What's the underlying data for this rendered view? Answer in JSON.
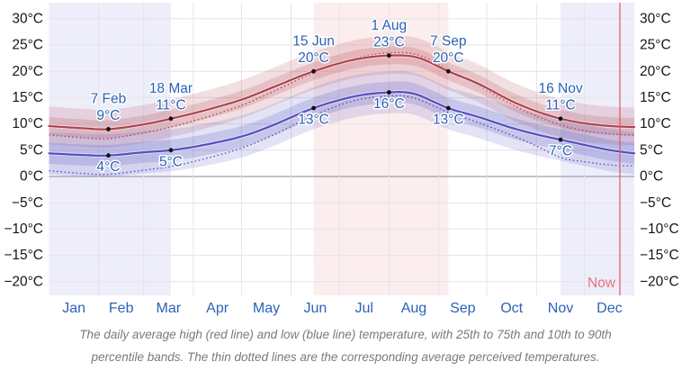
{
  "chart_data": {
    "type": "line",
    "unit": "°C",
    "x_axis": {
      "months": [
        {
          "label": "Jan",
          "start_day": 0,
          "length": 31
        },
        {
          "label": "Feb",
          "start_day": 31,
          "length": 28
        },
        {
          "label": "Mar",
          "start_day": 59,
          "length": 31
        },
        {
          "label": "Apr",
          "start_day": 90,
          "length": 30
        },
        {
          "label": "May",
          "start_day": 120,
          "length": 31
        },
        {
          "label": "Jun",
          "start_day": 151,
          "length": 30
        },
        {
          "label": "Jul",
          "start_day": 181,
          "length": 31
        },
        {
          "label": "Aug",
          "start_day": 212,
          "length": 31
        },
        {
          "label": "Sep",
          "start_day": 243,
          "length": 30
        },
        {
          "label": "Oct",
          "start_day": 273,
          "length": 31
        },
        {
          "label": "Nov",
          "start_day": 304,
          "length": 30
        },
        {
          "label": "Dec",
          "start_day": 334,
          "length": 31
        }
      ],
      "total_days": 365
    },
    "y_axis": {
      "ticks": [
        {
          "value": 30,
          "label": "30°C"
        },
        {
          "value": 25,
          "label": "25°C"
        },
        {
          "value": 20,
          "label": "20°C"
        },
        {
          "value": 15,
          "label": "15°C"
        },
        {
          "value": 10,
          "label": "10°C"
        },
        {
          "value": 5,
          "label": "5°C"
        },
        {
          "value": 0,
          "label": "0°C"
        },
        {
          "value": -5,
          "label": "−5°C"
        },
        {
          "value": -10,
          "label": "−10°C"
        },
        {
          "value": -15,
          "label": "−15°C"
        },
        {
          "value": -20,
          "label": "−20°C"
        }
      ]
    },
    "series": [
      {
        "name": "average-high",
        "style": "solid",
        "color_key": "red",
        "points": [
          [
            0,
            9.6
          ],
          [
            20,
            9.2
          ],
          [
            37,
            9.0
          ],
          [
            59,
            9.9
          ],
          [
            76,
            11.0
          ],
          [
            95,
            12.4
          ],
          [
            120,
            14.6
          ],
          [
            140,
            17.0
          ],
          [
            165,
            20.0
          ],
          [
            190,
            22.2
          ],
          [
            212,
            23.0
          ],
          [
            230,
            22.6
          ],
          [
            249,
            20.0
          ],
          [
            268,
            17.6
          ],
          [
            288,
            14.4
          ],
          [
            304,
            12.4
          ],
          [
            319,
            11.0
          ],
          [
            334,
            10.1
          ],
          [
            350,
            9.6
          ],
          [
            365,
            9.4
          ]
        ]
      },
      {
        "name": "perceived-high",
        "style": "dotted",
        "color_key": "red",
        "points": [
          [
            0,
            7.9
          ],
          [
            20,
            7.4
          ],
          [
            37,
            7.2
          ],
          [
            59,
            8.3
          ],
          [
            76,
            9.4
          ],
          [
            95,
            11.0
          ],
          [
            120,
            13.5
          ],
          [
            140,
            16.2
          ],
          [
            165,
            19.7
          ],
          [
            190,
            22.4
          ],
          [
            212,
            23.5
          ],
          [
            230,
            23.1
          ],
          [
            249,
            20.3
          ],
          [
            268,
            17.3
          ],
          [
            288,
            13.8
          ],
          [
            304,
            11.5
          ],
          [
            319,
            9.8
          ],
          [
            334,
            8.7
          ],
          [
            350,
            8.1
          ],
          [
            365,
            7.9
          ]
        ]
      },
      {
        "name": "average-low",
        "style": "solid",
        "color_key": "blue",
        "points": [
          [
            0,
            4.4
          ],
          [
            20,
            4.1
          ],
          [
            37,
            4.0
          ],
          [
            59,
            4.6
          ],
          [
            76,
            5.0
          ],
          [
            95,
            5.9
          ],
          [
            120,
            7.6
          ],
          [
            140,
            9.8
          ],
          [
            165,
            13.0
          ],
          [
            190,
            15.2
          ],
          [
            212,
            16.0
          ],
          [
            228,
            15.7
          ],
          [
            249,
            13.0
          ],
          [
            268,
            11.3
          ],
          [
            288,
            9.3
          ],
          [
            304,
            8.0
          ],
          [
            319,
            7.0
          ],
          [
            334,
            6.0
          ],
          [
            350,
            5.0
          ],
          [
            365,
            4.4
          ]
        ]
      },
      {
        "name": "perceived-low",
        "style": "dotted",
        "color_key": "blue",
        "points": [
          [
            0,
            1.1
          ],
          [
            20,
            0.6
          ],
          [
            37,
            0.4
          ],
          [
            59,
            1.2
          ],
          [
            76,
            1.9
          ],
          [
            95,
            3.2
          ],
          [
            120,
            5.4
          ],
          [
            140,
            7.9
          ],
          [
            165,
            11.6
          ],
          [
            190,
            14.4
          ],
          [
            212,
            15.3
          ],
          [
            228,
            14.9
          ],
          [
            249,
            12.2
          ],
          [
            268,
            10.2
          ],
          [
            288,
            7.9
          ],
          [
            304,
            5.8
          ],
          [
            319,
            3.6
          ],
          [
            334,
            2.8
          ],
          [
            350,
            2.2
          ],
          [
            365,
            2.0
          ]
        ]
      }
    ],
    "percentile_bands": [
      {
        "series": "average-high",
        "color_key": "red",
        "inner_offset": [
          1.7,
          1.7
        ],
        "outer_offset": [
          3.7,
          3.5
        ],
        "inner_range": "25th-75th",
        "outer_range": "10th-90th"
      },
      {
        "series": "average-low",
        "color_key": "blue",
        "inner_offset": [
          2.0,
          2.0
        ],
        "outer_offset": [
          4.0,
          4.0
        ],
        "inner_range": "25th-75th",
        "outer_range": "10th-90th"
      }
    ],
    "season_bands": [
      {
        "from_day": 0,
        "to_day": 76,
        "kind": "cool"
      },
      {
        "from_day": 165,
        "to_day": 249,
        "kind": "warm"
      },
      {
        "from_day": 319,
        "to_day": 365,
        "kind": "cool"
      }
    ],
    "annotations": [
      {
        "day": 37,
        "date_label": "7 Feb",
        "high_value": 9,
        "high_label": "9°C",
        "low_value": 4,
        "low_label": "4°C"
      },
      {
        "day": 76,
        "date_label": "18 Mar",
        "high_value": 11,
        "high_label": "11°C",
        "low_value": 5,
        "low_label": "5°C"
      },
      {
        "day": 165,
        "date_label": "15 Jun",
        "high_value": 20,
        "high_label": "20°C",
        "low_value": 13,
        "low_label": "13°C"
      },
      {
        "day": 212,
        "date_label": "1 Aug",
        "high_value": 23,
        "high_label": "23°C",
        "low_value": 16,
        "low_label": "16°C"
      },
      {
        "day": 249,
        "date_label": "7 Sep",
        "high_value": 20,
        "high_label": "20°C",
        "low_value": 13,
        "low_label": "13°C"
      },
      {
        "day": 319,
        "date_label": "16 Nov",
        "high_value": 11,
        "high_label": "11°C",
        "low_value": 7,
        "low_label": "7°C"
      }
    ],
    "now": {
      "day": 356,
      "label": "Now"
    }
  },
  "colors": {
    "red_line": "#b1424e",
    "blue_line": "#534fbe",
    "red_band_rgb": "177,66,78",
    "blue_band_rgb": "83,79,190",
    "warm_band": "rgba(226,88,88,0.10)",
    "cool_band": "rgba(99,99,206,0.11)",
    "grid": "#e4e4e4",
    "zero_line": "#a0a0a0",
    "axis_text": "#151515",
    "label_blue": "#2c62b8",
    "now_line": "#e25560",
    "now_text": "#e9737d",
    "dot": "#111111"
  },
  "caption": {
    "line1": "The daily average high (red line) and low (blue line) temperature, with 25th to 75th and 10th to 90th",
    "line2": "percentile bands. The thin dotted lines are the corresponding average perceived temperatures."
  }
}
